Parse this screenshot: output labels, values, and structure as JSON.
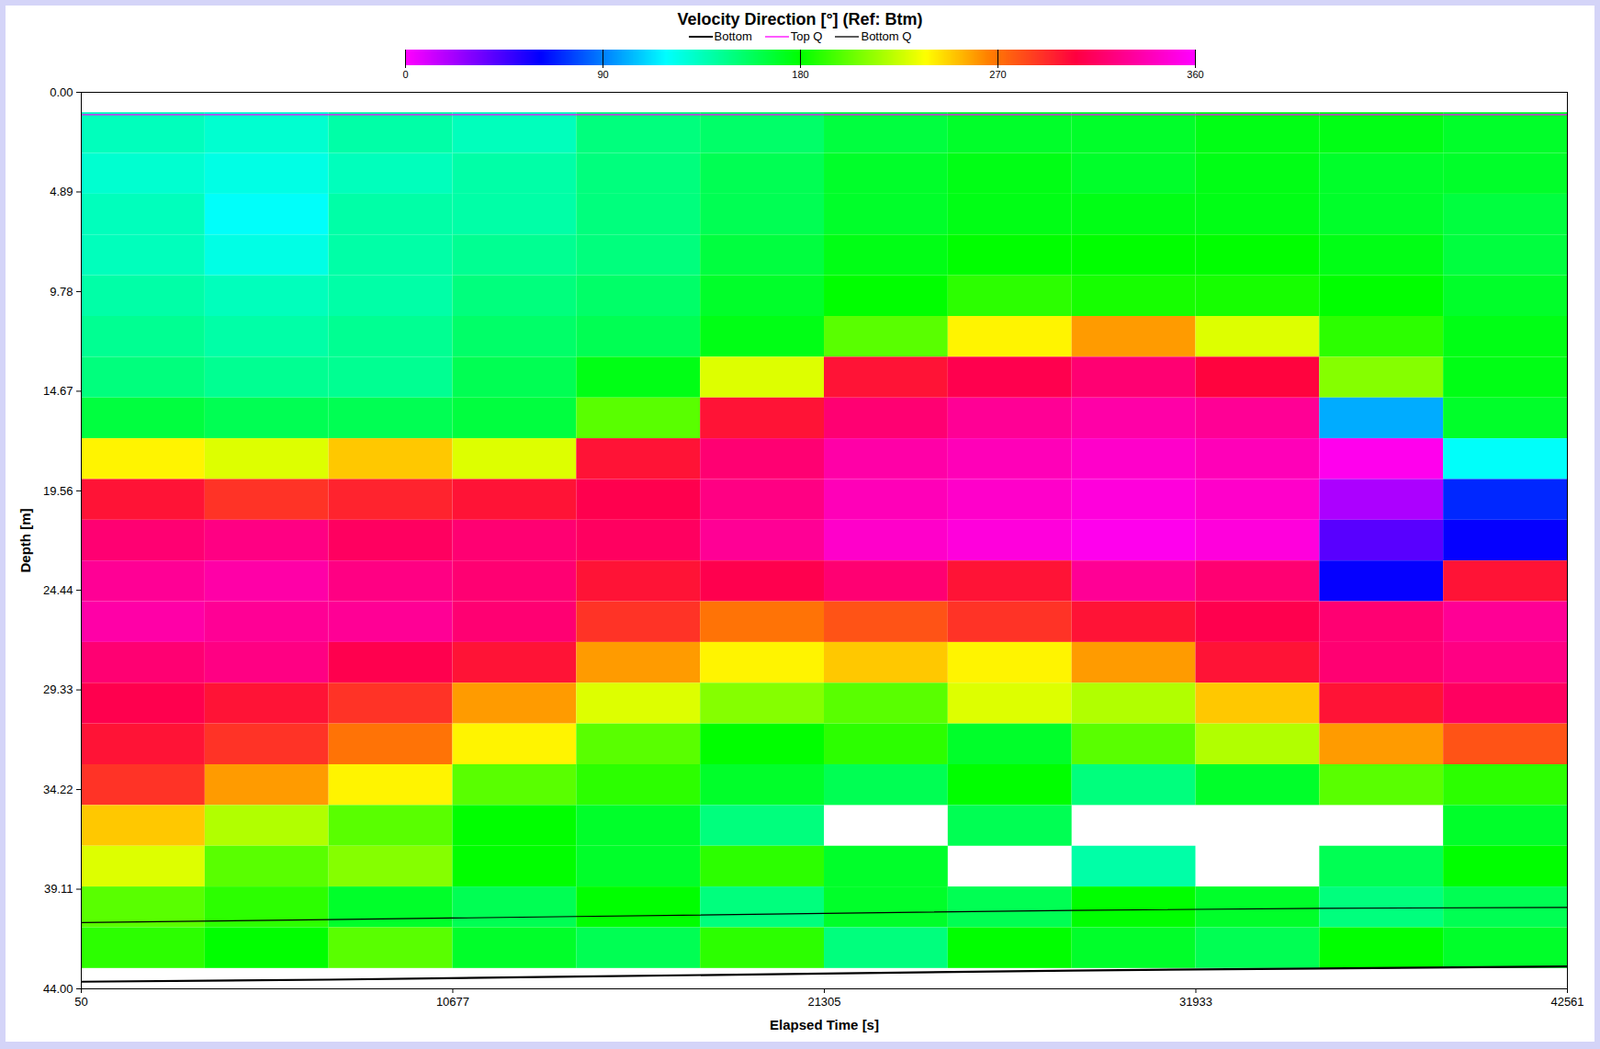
{
  "chart_data": {
    "type": "heatmap",
    "title": "Velocity Direction [°] (Ref: Btm)",
    "x_label": "Elapsed Time [s]",
    "y_label": "Depth [m]",
    "xlim": [
      50,
      42561
    ],
    "xticks": [
      50,
      10677,
      21305,
      31933,
      42561
    ],
    "ylim": [
      0,
      44
    ],
    "yticks": [
      {
        "value": 0,
        "label": "0.00"
      },
      4.89,
      9.78,
      14.67,
      19.56,
      24.44,
      29.33,
      34.22,
      39.11,
      {
        "value": 44,
        "label": "44.00"
      }
    ],
    "colorbar": {
      "range": [
        0,
        360
      ],
      "ticks": [
        0,
        90,
        180,
        270,
        360
      ]
    },
    "time_edges": [
      50,
      3593,
      7135,
      10678,
      14220,
      17763,
      21306,
      24848,
      28391,
      31933,
      35476,
      39018,
      42561
    ],
    "depth_edges": [
      1,
      3,
      5,
      7,
      9,
      11,
      13,
      15,
      17,
      19,
      21,
      23,
      25,
      27,
      29,
      31,
      33,
      35,
      37,
      39,
      41,
      43
    ],
    "cells": [
      [
        135,
        130,
        140,
        135,
        150,
        155,
        165,
        170,
        170,
        175,
        175,
        170
      ],
      [
        130,
        125,
        135,
        140,
        150,
        160,
        170,
        175,
        170,
        175,
        170,
        170
      ],
      [
        135,
        120,
        140,
        140,
        150,
        160,
        170,
        175,
        175,
        175,
        170,
        165
      ],
      [
        135,
        125,
        140,
        145,
        150,
        165,
        175,
        180,
        180,
        180,
        175,
        165
      ],
      [
        140,
        135,
        140,
        150,
        155,
        170,
        180,
        190,
        185,
        185,
        180,
        170
      ],
      [
        145,
        140,
        145,
        155,
        160,
        175,
        200,
        240,
        260,
        230,
        190,
        175
      ],
      [
        150,
        145,
        145,
        160,
        175,
        230,
        300,
        310,
        320,
        305,
        210,
        175
      ],
      [
        165,
        160,
        160,
        165,
        200,
        300,
        320,
        330,
        335,
        330,
        100,
        170
      ],
      [
        240,
        230,
        250,
        230,
        300,
        320,
        335,
        340,
        345,
        340,
        355,
        120
      ],
      [
        300,
        290,
        295,
        300,
        310,
        325,
        340,
        345,
        350,
        345,
        20,
        70
      ],
      [
        320,
        325,
        315,
        320,
        315,
        330,
        345,
        350,
        355,
        350,
        40,
        60
      ],
      [
        330,
        335,
        325,
        320,
        300,
        310,
        320,
        300,
        330,
        320,
        60,
        300
      ],
      [
        335,
        330,
        330,
        320,
        290,
        270,
        280,
        290,
        300,
        310,
        320,
        330
      ],
      [
        320,
        325,
        310,
        300,
        260,
        240,
        250,
        240,
        260,
        300,
        320,
        325
      ],
      [
        310,
        300,
        290,
        260,
        230,
        210,
        200,
        230,
        220,
        250,
        300,
        315
      ],
      [
        300,
        290,
        270,
        240,
        200,
        180,
        190,
        170,
        200,
        220,
        260,
        280
      ],
      [
        290,
        260,
        240,
        200,
        190,
        170,
        160,
        180,
        150,
        170,
        200,
        190
      ],
      [
        250,
        220,
        200,
        180,
        170,
        150,
        null,
        160,
        null,
        null,
        null,
        170
      ],
      [
        230,
        200,
        210,
        180,
        170,
        190,
        170,
        null,
        140,
        null,
        160,
        180
      ],
      [
        200,
        190,
        170,
        160,
        180,
        150,
        170,
        160,
        180,
        170,
        150,
        160
      ],
      [
        190,
        180,
        200,
        170,
        160,
        190,
        150,
        180,
        170,
        160,
        180,
        170
      ]
    ],
    "x": [
      50,
      7135,
      14220,
      21306,
      28391,
      35476,
      42561
    ],
    "series": [
      {
        "name": "Bottom",
        "color": "#000000",
        "values": [
          43.65,
          43.55,
          43.4,
          43.25,
          43.1,
          43.0,
          42.9
        ]
      },
      {
        "name": "Top Q",
        "color": "#ff00ff",
        "values": [
          1.1,
          1.1,
          1.1,
          1.1,
          1.1,
          1.1,
          1.1
        ]
      },
      {
        "name": "Bottom Q",
        "color": "#000000",
        "values": [
          40.75,
          40.6,
          40.45,
          40.3,
          40.15,
          40.05,
          40.0
        ]
      }
    ]
  }
}
